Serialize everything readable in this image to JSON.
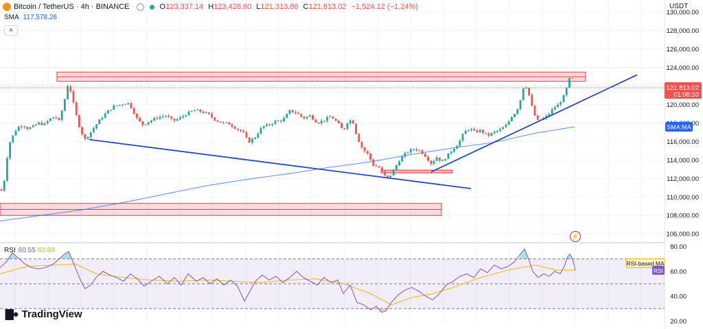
{
  "header": {
    "symbol": "Bitcoin / TetherUS · 4h · BINANCE",
    "open_label": "O",
    "open": "123,337.14",
    "high_label": "H",
    "high": "123,428.60",
    "low_label": "L",
    "low": "121,313.86",
    "close_label": "C",
    "close": "121,813.02",
    "change": "−1,524.12 (−1.24%)",
    "currency_button": "USDT"
  },
  "sma": {
    "label": "SMA",
    "value": "117,578.26",
    "tag": "SMA:MA"
  },
  "price_tag": {
    "price": "121,813.02",
    "countdown": "01:08:30"
  },
  "rsi": {
    "label": "RSI",
    "value": "60.55",
    "ma_value": "60.69",
    "ma_tag": "RSI-based MA",
    "tag": "RSI"
  },
  "branding": "TradingView",
  "colors": {
    "up": "#26a69a",
    "down": "#ef5350",
    "sma": "#2962ff",
    "trendline": "#2a47c0",
    "rsi": "#7e57c2",
    "rsi_ma": "#f7b500",
    "zone": "#f23645"
  },
  "icons": [
    "bitcoin-logo-icon",
    "market-status-icon",
    "eye-icon",
    "collapse-icon",
    "lightning-icon"
  ],
  "chart_data": {
    "type": "candlestick",
    "price_axis": {
      "ticks": [
        130000,
        128000,
        126000,
        124000,
        122000,
        120000,
        118000,
        116000,
        114000,
        112000,
        110000,
        108000,
        106000
      ],
      "tick_labels": [
        "130,000.00",
        "128,000.00",
        "126,000.00",
        "124,000.00",
        "122,000.00",
        "120,000.00",
        "118,000.00",
        "116,000.00",
        "114,000.00",
        "112,000.00",
        "110,000.00",
        "108,000.00",
        "106,000.00"
      ],
      "range": [
        105200,
        131300
      ]
    },
    "rsi_axis": {
      "ticks": [
        80,
        60,
        40,
        20
      ],
      "tick_labels": [
        "80.00",
        "60.00",
        "40.00",
        "20.00"
      ],
      "range": [
        18,
        82
      ],
      "band": [
        30,
        70
      ]
    },
    "resistance_zone": [
      122500,
      123500
    ],
    "support_zone": [
      108000,
      109300
    ],
    "small_zone": [
      112600,
      112900
    ],
    "current_price": 121813.02,
    "sma_value": 117578.26,
    "rsi_value": 60.55,
    "rsi_ma_value": 60.69,
    "price_path": [
      [
        0,
        110800
      ],
      [
        3,
        110600
      ],
      [
        8,
        112500
      ],
      [
        12,
        115500
      ],
      [
        18,
        116500
      ],
      [
        25,
        117500
      ],
      [
        33,
        117800
      ],
      [
        40,
        117400
      ],
      [
        48,
        117600
      ],
      [
        56,
        118000
      ],
      [
        64,
        117800
      ],
      [
        72,
        118400
      ],
      [
        80,
        118700
      ],
      [
        86,
        118200
      ],
      [
        92,
        119800
      ],
      [
        97,
        121400
      ],
      [
        100,
        122600
      ],
      [
        104,
        121000
      ],
      [
        108,
        119800
      ],
      [
        113,
        118200
      ],
      [
        118,
        117100
      ],
      [
        124,
        116200
      ],
      [
        130,
        116800
      ],
      [
        138,
        117600
      ],
      [
        146,
        118400
      ],
      [
        156,
        119200
      ],
      [
        166,
        119800
      ],
      [
        176,
        120000
      ],
      [
        186,
        120200
      ],
      [
        192,
        119600
      ],
      [
        200,
        118400
      ],
      [
        208,
        117800
      ],
      [
        218,
        118200
      ],
      [
        230,
        118600
      ],
      [
        242,
        118800
      ],
      [
        252,
        118200
      ],
      [
        262,
        118500
      ],
      [
        272,
        119000
      ],
      [
        284,
        119400
      ],
      [
        294,
        119200
      ],
      [
        304,
        118900
      ],
      [
        314,
        118300
      ],
      [
        324,
        118000
      ],
      [
        334,
        117900
      ],
      [
        344,
        117400
      ],
      [
        354,
        117000
      ],
      [
        362,
        115900
      ],
      [
        372,
        116500
      ],
      [
        382,
        117600
      ],
      [
        392,
        117800
      ],
      [
        402,
        118200
      ],
      [
        412,
        118300
      ],
      [
        422,
        119300
      ],
      [
        432,
        119100
      ],
      [
        442,
        118500
      ],
      [
        452,
        118800
      ],
      [
        462,
        118000
      ],
      [
        472,
        118300
      ],
      [
        482,
        118700
      ],
      [
        492,
        118000
      ],
      [
        500,
        117100
      ],
      [
        508,
        118400
      ],
      [
        515,
        118000
      ],
      [
        520,
        116500
      ],
      [
        528,
        115200
      ],
      [
        536,
        114600
      ],
      [
        544,
        113400
      ],
      [
        552,
        113200
      ],
      [
        560,
        112300
      ],
      [
        566,
        112000
      ],
      [
        574,
        113000
      ],
      [
        582,
        114000
      ],
      [
        592,
        114800
      ],
      [
        602,
        115200
      ],
      [
        612,
        115000
      ],
      [
        620,
        114400
      ],
      [
        628,
        113600
      ],
      [
        636,
        114300
      ],
      [
        644,
        113800
      ],
      [
        652,
        114500
      ],
      [
        660,
        115200
      ],
      [
        668,
        115800
      ],
      [
        676,
        117000
      ],
      [
        684,
        117400
      ],
      [
        692,
        117000
      ],
      [
        700,
        117200
      ],
      [
        710,
        116600
      ],
      [
        720,
        117000
      ],
      [
        730,
        117300
      ],
      [
        738,
        117800
      ],
      [
        746,
        118800
      ],
      [
        752,
        119200
      ],
      [
        758,
        120500
      ],
      [
        764,
        122400
      ],
      [
        770,
        121200
      ],
      [
        776,
        119400
      ],
      [
        782,
        118200
      ],
      [
        790,
        118400
      ],
      [
        798,
        118800
      ],
      [
        806,
        119600
      ],
      [
        814,
        120000
      ],
      [
        822,
        121000
      ],
      [
        828,
        122400
      ],
      [
        832,
        123400
      ],
      [
        836,
        121800
      ]
    ],
    "sma_path": [
      [
        0,
        107400
      ],
      [
        60,
        108000
      ],
      [
        120,
        108600
      ],
      [
        180,
        109400
      ],
      [
        240,
        110300
      ],
      [
        300,
        111200
      ],
      [
        360,
        111900
      ],
      [
        420,
        112500
      ],
      [
        480,
        113200
      ],
      [
        540,
        113800
      ],
      [
        600,
        114600
      ],
      [
        660,
        115300
      ],
      [
        720,
        115900
      ],
      [
        780,
        116900
      ],
      [
        837,
        117580
      ]
    ],
    "trendlines": [
      {
        "name": "descending-support",
        "from": [
          130,
          116200
        ],
        "to": [
          686,
          110900
        ]
      },
      {
        "name": "ascending-support",
        "from": [
          628,
          112700
        ],
        "to": [
          928,
          123200
        ]
      }
    ],
    "rsi_path": [
      [
        0,
        63
      ],
      [
        10,
        68
      ],
      [
        18,
        75
      ],
      [
        26,
        71
      ],
      [
        36,
        66
      ],
      [
        46,
        63
      ],
      [
        56,
        62
      ],
      [
        66,
        63
      ],
      [
        78,
        66
      ],
      [
        86,
        70
      ],
      [
        94,
        74
      ],
      [
        100,
        76
      ],
      [
        106,
        68
      ],
      [
        112,
        60
      ],
      [
        118,
        52
      ],
      [
        124,
        46
      ],
      [
        132,
        49
      ],
      [
        140,
        55
      ],
      [
        150,
        60
      ],
      [
        160,
        57
      ],
      [
        170,
        55
      ],
      [
        180,
        52
      ],
      [
        190,
        58
      ],
      [
        200,
        54
      ],
      [
        210,
        48
      ],
      [
        220,
        52
      ],
      [
        232,
        56
      ],
      [
        244,
        50
      ],
      [
        254,
        55
      ],
      [
        264,
        49
      ],
      [
        274,
        58
      ],
      [
        286,
        52
      ],
      [
        296,
        55
      ],
      [
        306,
        50
      ],
      [
        316,
        54
      ],
      [
        326,
        49
      ],
      [
        336,
        53
      ],
      [
        346,
        48
      ],
      [
        356,
        36
      ],
      [
        364,
        44
      ],
      [
        372,
        52
      ],
      [
        382,
        57
      ],
      [
        392,
        53
      ],
      [
        402,
        56
      ],
      [
        412,
        51
      ],
      [
        422,
        55
      ],
      [
        432,
        60
      ],
      [
        442,
        55
      ],
      [
        452,
        52
      ],
      [
        462,
        49
      ],
      [
        472,
        55
      ],
      [
        482,
        51
      ],
      [
        492,
        53
      ],
      [
        500,
        42
      ],
      [
        510,
        49
      ],
      [
        520,
        35
      ],
      [
        530,
        33
      ],
      [
        540,
        29
      ],
      [
        548,
        32
      ],
      [
        556,
        27
      ],
      [
        562,
        28
      ],
      [
        570,
        35
      ],
      [
        580,
        41
      ],
      [
        590,
        45
      ],
      [
        600,
        47
      ],
      [
        610,
        44
      ],
      [
        620,
        40
      ],
      [
        630,
        37
      ],
      [
        640,
        42
      ],
      [
        650,
        49
      ],
      [
        660,
        52
      ],
      [
        670,
        56
      ],
      [
        680,
        58
      ],
      [
        690,
        55
      ],
      [
        700,
        62
      ],
      [
        710,
        59
      ],
      [
        720,
        65
      ],
      [
        730,
        62
      ],
      [
        740,
        64
      ],
      [
        750,
        68
      ],
      [
        758,
        74
      ],
      [
        764,
        78
      ],
      [
        770,
        70
      ],
      [
        776,
        60
      ],
      [
        784,
        55
      ],
      [
        792,
        58
      ],
      [
        800,
        56
      ],
      [
        808,
        60
      ],
      [
        816,
        58
      ],
      [
        822,
        64
      ],
      [
        826,
        71
      ],
      [
        830,
        74
      ],
      [
        834,
        70
      ],
      [
        838,
        61
      ]
    ],
    "rsi_ma_path": [
      [
        0,
        58
      ],
      [
        40,
        64
      ],
      [
        80,
        65
      ],
      [
        110,
        66
      ],
      [
        140,
        58
      ],
      [
        180,
        55
      ],
      [
        220,
        53
      ],
      [
        260,
        52
      ],
      [
        300,
        53
      ],
      [
        340,
        52
      ],
      [
        380,
        51
      ],
      [
        420,
        53
      ],
      [
        460,
        54
      ],
      [
        500,
        50
      ],
      [
        540,
        42
      ],
      [
        570,
        33
      ],
      [
        600,
        39
      ],
      [
        630,
        42
      ],
      [
        660,
        47
      ],
      [
        700,
        55
      ],
      [
        740,
        61
      ],
      [
        780,
        65
      ],
      [
        810,
        61
      ],
      [
        838,
        61
      ]
    ]
  }
}
